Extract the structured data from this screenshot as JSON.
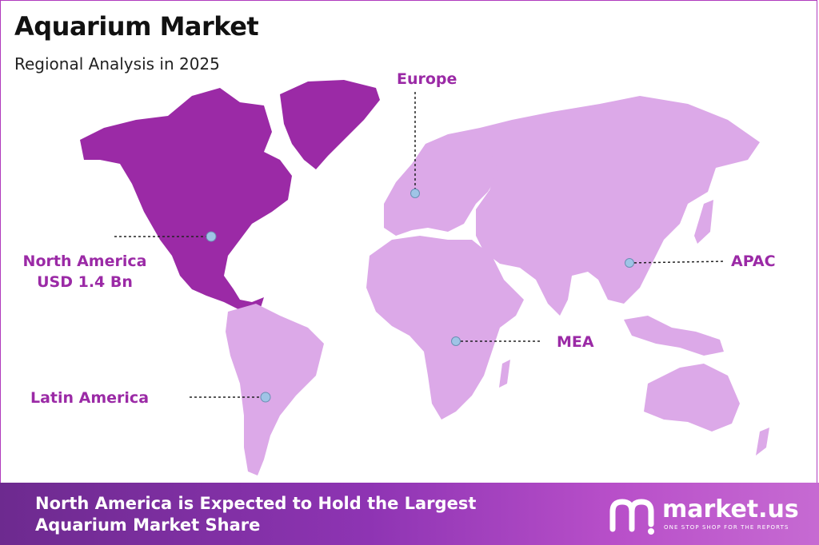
{
  "title": "Aquarium Market",
  "subtitle": "Regional Analysis in 2025",
  "regions": [
    {
      "name": "Europe",
      "value": ""
    },
    {
      "name": "North America",
      "value": "USD 1.4 Bn"
    },
    {
      "name": "APAC",
      "value": ""
    },
    {
      "name": "MEA",
      "value": ""
    },
    {
      "name": "Latin America",
      "value": ""
    }
  ],
  "footer": {
    "headline_line1": "North America is Expected to Hold the Largest",
    "headline_line2": "Aquarium Market Share"
  },
  "brand": {
    "name": "market.us",
    "tagline": "ONE STOP SHOP FOR THE REPORTS"
  },
  "colors": {
    "highlight": "#9b2aa6",
    "land": "#dca9e8",
    "accent_text": "#9b2aa6",
    "marker": "#9fc4e6"
  }
}
